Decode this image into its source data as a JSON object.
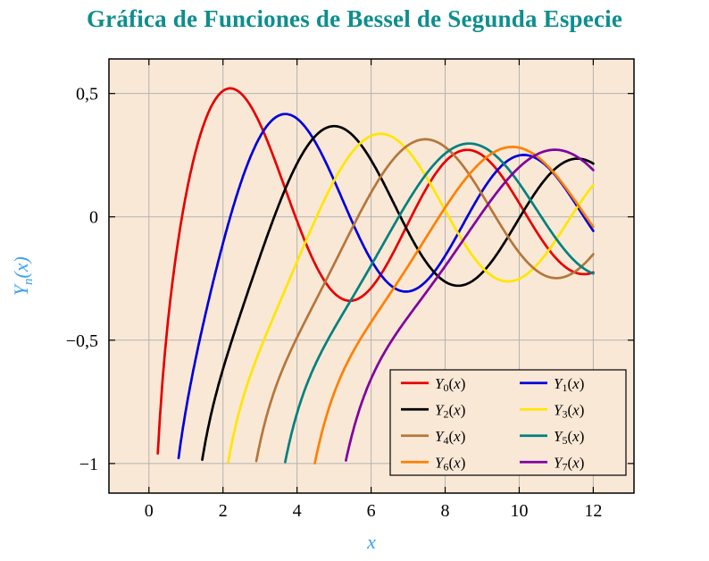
{
  "page": {
    "title": "Gráfica de Funciones de Bessel de Segunda Especie",
    "title_color": "#0e8e8e",
    "background": "#ffffff"
  },
  "axes": {
    "xlabel": "x",
    "ylabel": {
      "base": "Y",
      "sub": "n",
      "args": "(x)"
    },
    "label_color": "#38a0f0",
    "tick_color": "#000000"
  },
  "chart_data": {
    "type": "line",
    "title": "Gráfica de Funciones de Bessel de Segunda Especie",
    "xlabel": "x",
    "ylabel": "Y_n(x)",
    "function_family": "Bessel functions of the second kind Y_n(x)",
    "xlim": [
      -1.08,
      13.1
    ],
    "ylim": [
      -1.12,
      0.64
    ],
    "x_range": [
      0.02,
      12.0
    ],
    "sample_step": 0.02,
    "clip_y_min": -1.0,
    "grid": true,
    "grid_color": "#b3b3b3",
    "plot_background": "#f9e8d6",
    "frame_color": "#000000",
    "x_ticks": [
      {
        "v": 0,
        "label": "0"
      },
      {
        "v": 2,
        "label": "2"
      },
      {
        "v": 4,
        "label": "4"
      },
      {
        "v": 6,
        "label": "6"
      },
      {
        "v": 8,
        "label": "8"
      },
      {
        "v": 10,
        "label": "10"
      },
      {
        "v": 12,
        "label": "12"
      }
    ],
    "y_ticks": [
      {
        "v": 0.5,
        "label": "0,5"
      },
      {
        "v": 0,
        "label": "0"
      },
      {
        "v": -0.5,
        "label": "−0,5"
      },
      {
        "v": -1,
        "label": "−1"
      }
    ],
    "legend": {
      "position": "south east",
      "columns": 2,
      "background": "#f9e8d6",
      "border": "#000000"
    },
    "series": [
      {
        "label": "Y_0(x)",
        "base": "Y",
        "sub": "0",
        "args": "(x)",
        "order": 0,
        "color": "#e60000"
      },
      {
        "label": "Y_1(x)",
        "base": "Y",
        "sub": "1",
        "args": "(x)",
        "order": 1,
        "color": "#0000dd"
      },
      {
        "label": "Y_2(x)",
        "base": "Y",
        "sub": "2",
        "args": "(x)",
        "order": 2,
        "color": "#000000"
      },
      {
        "label": "Y_3(x)",
        "base": "Y",
        "sub": "3",
        "args": "(x)",
        "order": 3,
        "color": "#ffe600"
      },
      {
        "label": "Y_4(x)",
        "base": "Y",
        "sub": "4",
        "args": "(x)",
        "order": 4,
        "color": "#b5763c"
      },
      {
        "label": "Y_5(x)",
        "base": "Y",
        "sub": "5",
        "args": "(x)",
        "order": 5,
        "color": "#00807e"
      },
      {
        "label": "Y_6(x)",
        "base": "Y",
        "sub": "6",
        "args": "(x)",
        "order": 6,
        "color": "#ff8000"
      },
      {
        "label": "Y_7(x)",
        "base": "Y",
        "sub": "7",
        "args": "(x)",
        "order": 7,
        "color": "#8000a0"
      }
    ]
  }
}
